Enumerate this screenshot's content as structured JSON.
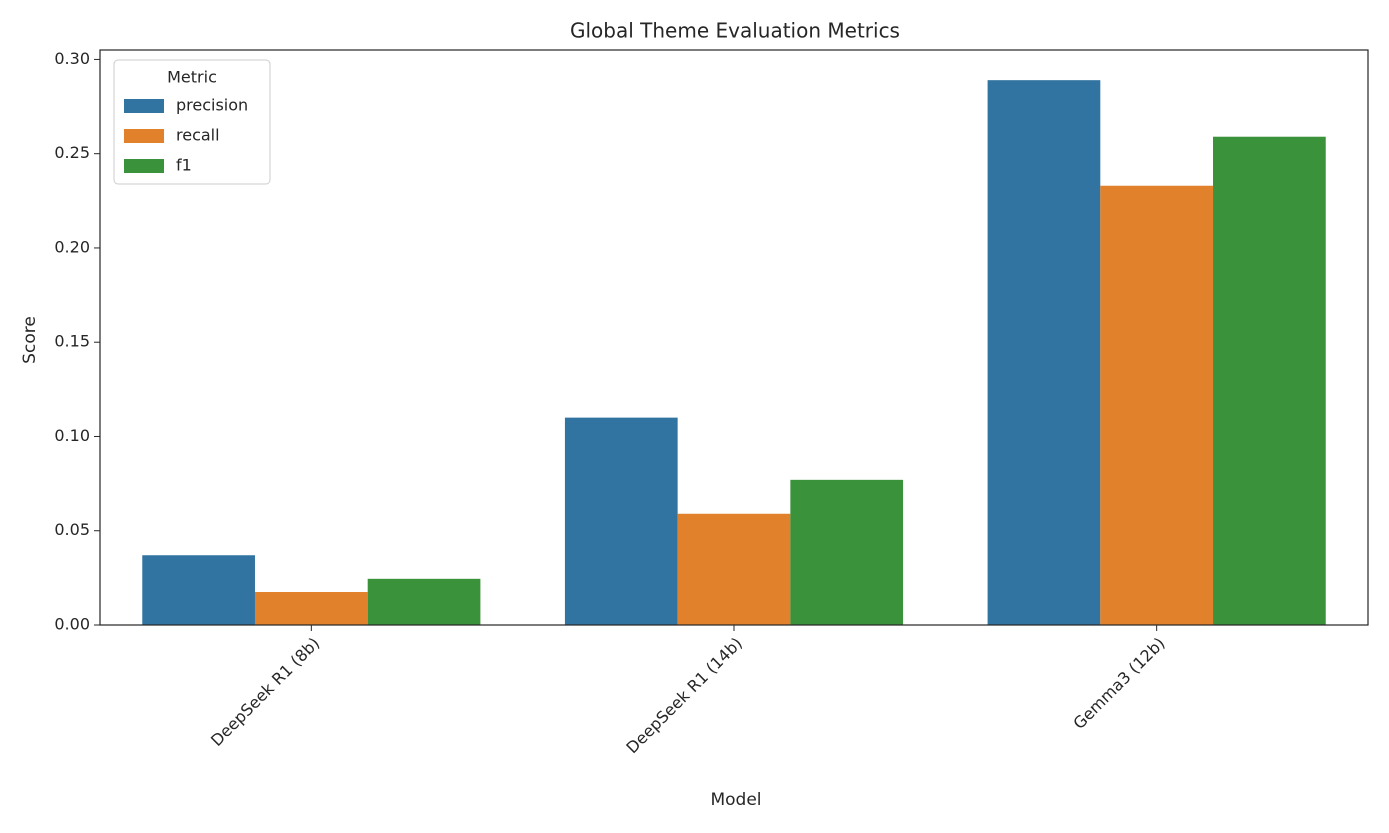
{
  "chart_data": {
    "type": "bar",
    "title": "Global Theme Evaluation Metrics",
    "x_label": "Model",
    "y_label": "Score",
    "categories": [
      "DeepSeek R1 (8b)",
      "DeepSeek R1 (14b)",
      "Gemma3 (12b)"
    ],
    "series": [
      {
        "name": "precision",
        "color": "#3274a1",
        "values": [
          0.037,
          0.11,
          0.289
        ]
      },
      {
        "name": "recall",
        "color": "#e1812c",
        "values": [
          0.0175,
          0.059,
          0.233
        ]
      },
      {
        "name": "f1",
        "color": "#3a923a",
        "values": [
          0.0245,
          0.077,
          0.259
        ]
      }
    ],
    "legend_title": "Metric",
    "legend_position": "upper left",
    "ylim": [
      0,
      0.305
    ],
    "yticks": [
      {
        "value": 0,
        "label": "0.00"
      },
      {
        "value": 0.05,
        "label": "0.05"
      },
      {
        "value": 0.1,
        "label": "0.10"
      },
      {
        "value": 0.15,
        "label": "0.15"
      },
      {
        "value": 0.2,
        "label": "0.20"
      },
      {
        "value": 0.25,
        "label": "0.25"
      },
      {
        "value": 0.3,
        "label": "0.30"
      }
    ],
    "grid": false
  }
}
